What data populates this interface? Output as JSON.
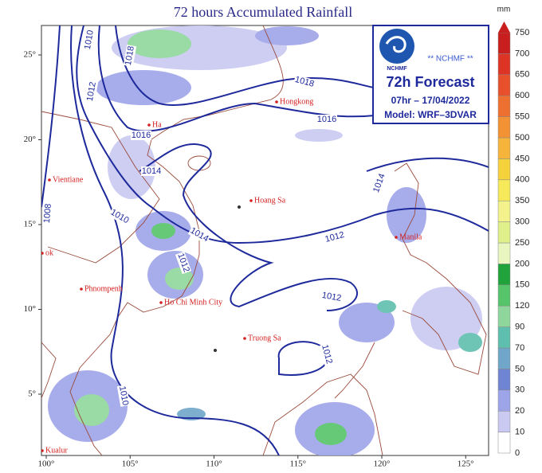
{
  "map": {
    "title": "72 hours Accumulated Rainfall",
    "lon_ticks": [
      {
        "value": 100,
        "label": "100°"
      },
      {
        "value": 105,
        "label": "105°"
      },
      {
        "value": 110,
        "label": "110°"
      },
      {
        "value": 115,
        "label": "115°"
      },
      {
        "value": 120,
        "label": "120°"
      },
      {
        "value": 125,
        "label": "125°"
      }
    ],
    "lat_ticks": [
      {
        "value": 25,
        "label": "25°"
      },
      {
        "value": 20,
        "label": "20°"
      },
      {
        "value": 15,
        "label": "15°"
      },
      {
        "value": 10,
        "label": "10°"
      },
      {
        "value": 5,
        "label": "5°"
      }
    ],
    "info_box": {
      "logo_text": "NCHMF",
      "agency": "** NCHMF **",
      "product": "72h Forecast",
      "time": "07hr – 17/04/2022",
      "model": "Model: WRF–3DVAR"
    },
    "cities": [
      "Hongkong",
      "Ha",
      "Vientiane",
      "Hoang Sa",
      "Manila",
      "ok",
      "Phnompenh",
      "Ho Chi Minh City",
      "Truong Sa",
      "Kualur"
    ],
    "isobar_labels": [
      "1010",
      "1018",
      "1012",
      "1018",
      "1016",
      "1016",
      "1014",
      "1008",
      "1010",
      "1014",
      "1012",
      "1012",
      "1014",
      "1012",
      "1012",
      "1010"
    ],
    "legend": {
      "unit": "mm",
      "levels": [
        0,
        10,
        20,
        30,
        50,
        70,
        90,
        120,
        150,
        200,
        250,
        300,
        350,
        400,
        450,
        500,
        550,
        600,
        650,
        700,
        750
      ],
      "colors": [
        "#ffffff",
        "#c9c9f2",
        "#9ea4e8",
        "#6f84d3",
        "#6fa6c9",
        "#5fbfae",
        "#8fd69c",
        "#56c46a",
        "#1fa33a",
        "#e9f6c0",
        "#dff08a",
        "#f3f28c",
        "#f7ea5a",
        "#f5d23c",
        "#f6b43a",
        "#f39234",
        "#ee7030",
        "#e8502c",
        "#dd3426",
        "#c81e1e"
      ]
    }
  }
}
